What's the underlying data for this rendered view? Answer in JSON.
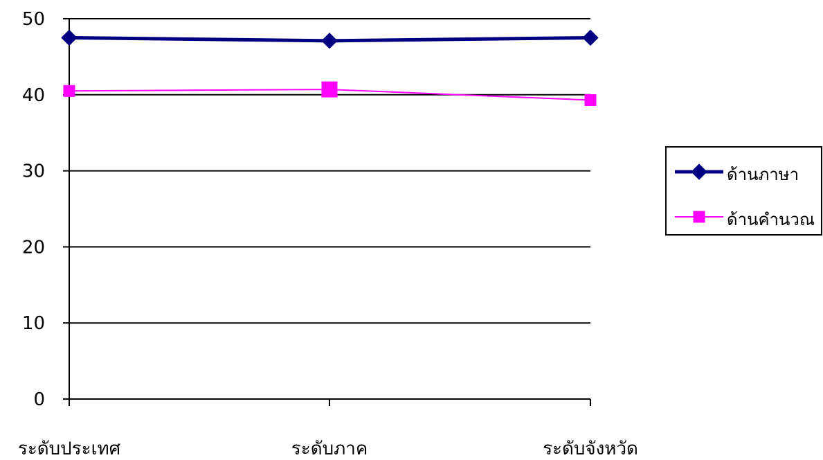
{
  "chart_data": {
    "type": "line",
    "categories": [
      "ระดับประเทศ",
      "ระดับภาค",
      "ระดับจังหวัด"
    ],
    "ylim": [
      0,
      50
    ],
    "yticks": [
      0,
      10,
      20,
      30,
      40,
      50
    ],
    "grid": true,
    "legend_position": "right",
    "series": [
      {
        "name": "ด้านภาษา",
        "values": [
          47.5,
          47.1,
          47.5
        ],
        "color": "#000080",
        "marker": "diamond"
      },
      {
        "name": "ด้านคำนวณ",
        "values": [
          40.5,
          40.7,
          39.3
        ],
        "color": "#ff00ff",
        "marker": "square"
      }
    ]
  }
}
